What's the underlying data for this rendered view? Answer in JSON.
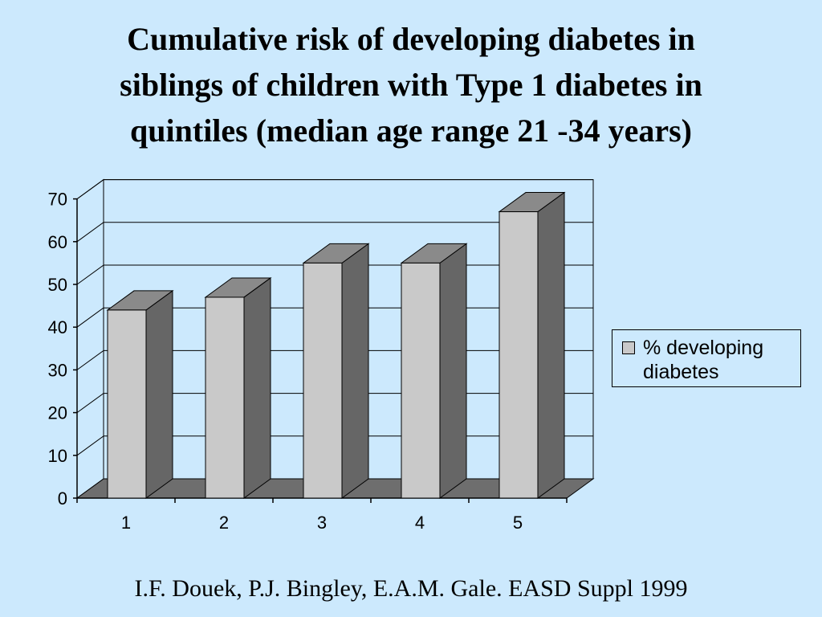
{
  "title_lines": [
    "Cumulative risk of developing diabetes in",
    "siblings of children with Type 1 diabetes in",
    "quintiles (median age range 21 -34 years)"
  ],
  "citation": "I.F. Douek, P.J. Bingley, E.A.M. Gale. EASD Suppl 1999",
  "colors": {
    "background": "#cce9fd",
    "bar_front": "#c9c9c9",
    "bar_side": "#666666",
    "bar_top": "#8a8a8a",
    "floor": "#6e6e6e"
  },
  "chart_data": {
    "type": "bar",
    "categories": [
      "1",
      "2",
      "3",
      "4",
      "5"
    ],
    "series": [
      {
        "name": "% developing diabetes",
        "values": [
          44,
          47,
          55,
          55,
          67
        ]
      }
    ],
    "ylim": [
      0,
      70
    ],
    "yticks": [
      0,
      10,
      20,
      30,
      40,
      50,
      60,
      70
    ],
    "ytick_labels": [
      "0",
      "10",
      "20",
      "30",
      "40",
      "50",
      "60",
      "70"
    ],
    "xlabel": "",
    "ylabel": "",
    "grid": true,
    "legend_position": "right",
    "style": "3d"
  }
}
